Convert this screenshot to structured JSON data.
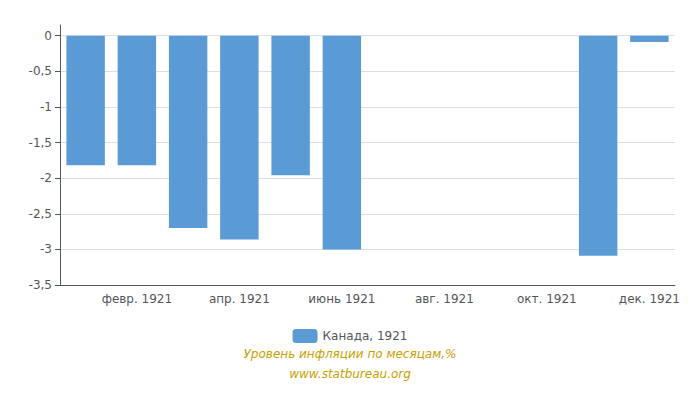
{
  "chart_data": {
    "type": "bar",
    "categories": [
      null,
      "февр. 1921",
      null,
      "апр. 1921",
      null,
      "июнь 1921",
      null,
      "авг. 1921",
      null,
      "окт. 1921",
      null,
      "дек. 1921"
    ],
    "series": [
      {
        "name": "Канада, 1921",
        "color": "#5B9BD5",
        "values": [
          -1.82,
          -1.82,
          -2.7,
          -2.86,
          -1.96,
          -3.0,
          0,
          0,
          0,
          0,
          -3.09,
          -0.09
        ]
      }
    ],
    "ylim": [
      -3.5,
      0.15
    ],
    "yticks": [
      0,
      {
        "value": -0.5,
        "label": "-0,5"
      },
      -1,
      {
        "value": -1.5,
        "label": "-1,5"
      },
      -2,
      {
        "value": -2.5,
        "label": "-2,5"
      },
      -3,
      {
        "value": -3.5,
        "label": "-3,5"
      }
    ],
    "grid": true,
    "legend": "bottom",
    "annotations": [
      "Уровень инфляции по месяцам,%",
      "www.statbureau.org"
    ]
  }
}
